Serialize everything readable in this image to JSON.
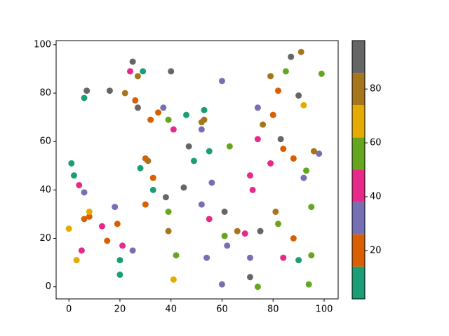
{
  "chart_data": {
    "type": "scatter",
    "x": [
      29,
      6,
      1,
      2,
      28,
      33,
      20,
      20,
      46,
      53,
      55,
      49,
      90,
      26,
      35,
      32,
      30,
      33,
      30,
      8,
      6,
      15,
      19,
      80,
      82,
      84,
      88,
      88,
      37,
      60,
      52,
      74,
      6,
      18,
      25,
      52,
      56,
      62,
      54,
      60,
      71,
      92,
      98,
      24,
      41,
      4,
      5,
      13,
      21,
      55,
      69,
      71,
      72,
      74,
      79,
      84,
      39,
      39,
      42,
      63,
      61,
      74,
      82,
      85,
      93,
      95,
      95,
      94,
      99,
      0,
      3,
      8,
      41,
      92,
      27,
      22,
      31,
      39,
      53,
      52,
      66,
      76,
      79,
      81,
      91,
      96,
      25,
      40,
      7,
      16,
      27,
      47,
      38,
      45,
      61,
      71,
      75,
      83,
      87,
      90
    ],
    "y": [
      89,
      78,
      51,
      46,
      49,
      40,
      11,
      5,
      71,
      73,
      56,
      52,
      11,
      77,
      72,
      69,
      53,
      45,
      34,
      29,
      28,
      19,
      26,
      71,
      81,
      57,
      53,
      20,
      74,
      85,
      65,
      74,
      39,
      33,
      15,
      34,
      43,
      17,
      12,
      1,
      12,
      45,
      55,
      89,
      65,
      42,
      15,
      25,
      17,
      28,
      22,
      46,
      40,
      61,
      51,
      12,
      69,
      31,
      13,
      58,
      21,
      0,
      26,
      89,
      48,
      33,
      13,
      1,
      88,
      24,
      11,
      31,
      3,
      75,
      87,
      80,
      52,
      23,
      69,
      68,
      23,
      67,
      87,
      31,
      97,
      56,
      93,
      89,
      81,
      81,
      74,
      58,
      37,
      41,
      31,
      4,
      23,
      61,
      95,
      79
    ],
    "c": [
      8,
      8,
      8,
      8,
      8,
      8,
      8,
      8,
      8,
      8,
      8,
      8,
      8,
      20,
      20,
      20,
      20,
      20,
      20,
      20,
      20,
      20,
      20,
      20,
      20,
      20,
      20,
      20,
      32,
      32,
      32,
      32,
      32,
      32,
      32,
      32,
      32,
      32,
      32,
      32,
      32,
      32,
      32,
      44,
      44,
      44,
      44,
      44,
      44,
      44,
      44,
      44,
      44,
      44,
      44,
      44,
      56,
      56,
      56,
      56,
      56,
      56,
      56,
      56,
      56,
      56,
      56,
      56,
      56,
      68,
      68,
      68,
      68,
      68,
      80,
      80,
      80,
      80,
      80,
      80,
      80,
      80,
      80,
      80,
      80,
      80,
      92,
      92,
      92,
      92,
      92,
      92,
      92,
      92,
      92,
      92,
      92,
      92,
      92,
      92
    ],
    "colormap": [
      "#1b9e77",
      "#d95f02",
      "#7570b3",
      "#e7298a",
      "#66a61e",
      "#e6ab02",
      "#a6761d",
      "#666666"
    ],
    "clim": [
      2,
      98
    ],
    "cticks": [
      20,
      40,
      60,
      80
    ],
    "xlim": [
      -5,
      105.5
    ],
    "ylim": [
      -5,
      101.7
    ],
    "xticks": [
      0,
      20,
      40,
      60,
      80,
      100
    ],
    "yticks": [
      0,
      20,
      40,
      60,
      80,
      100
    ]
  }
}
